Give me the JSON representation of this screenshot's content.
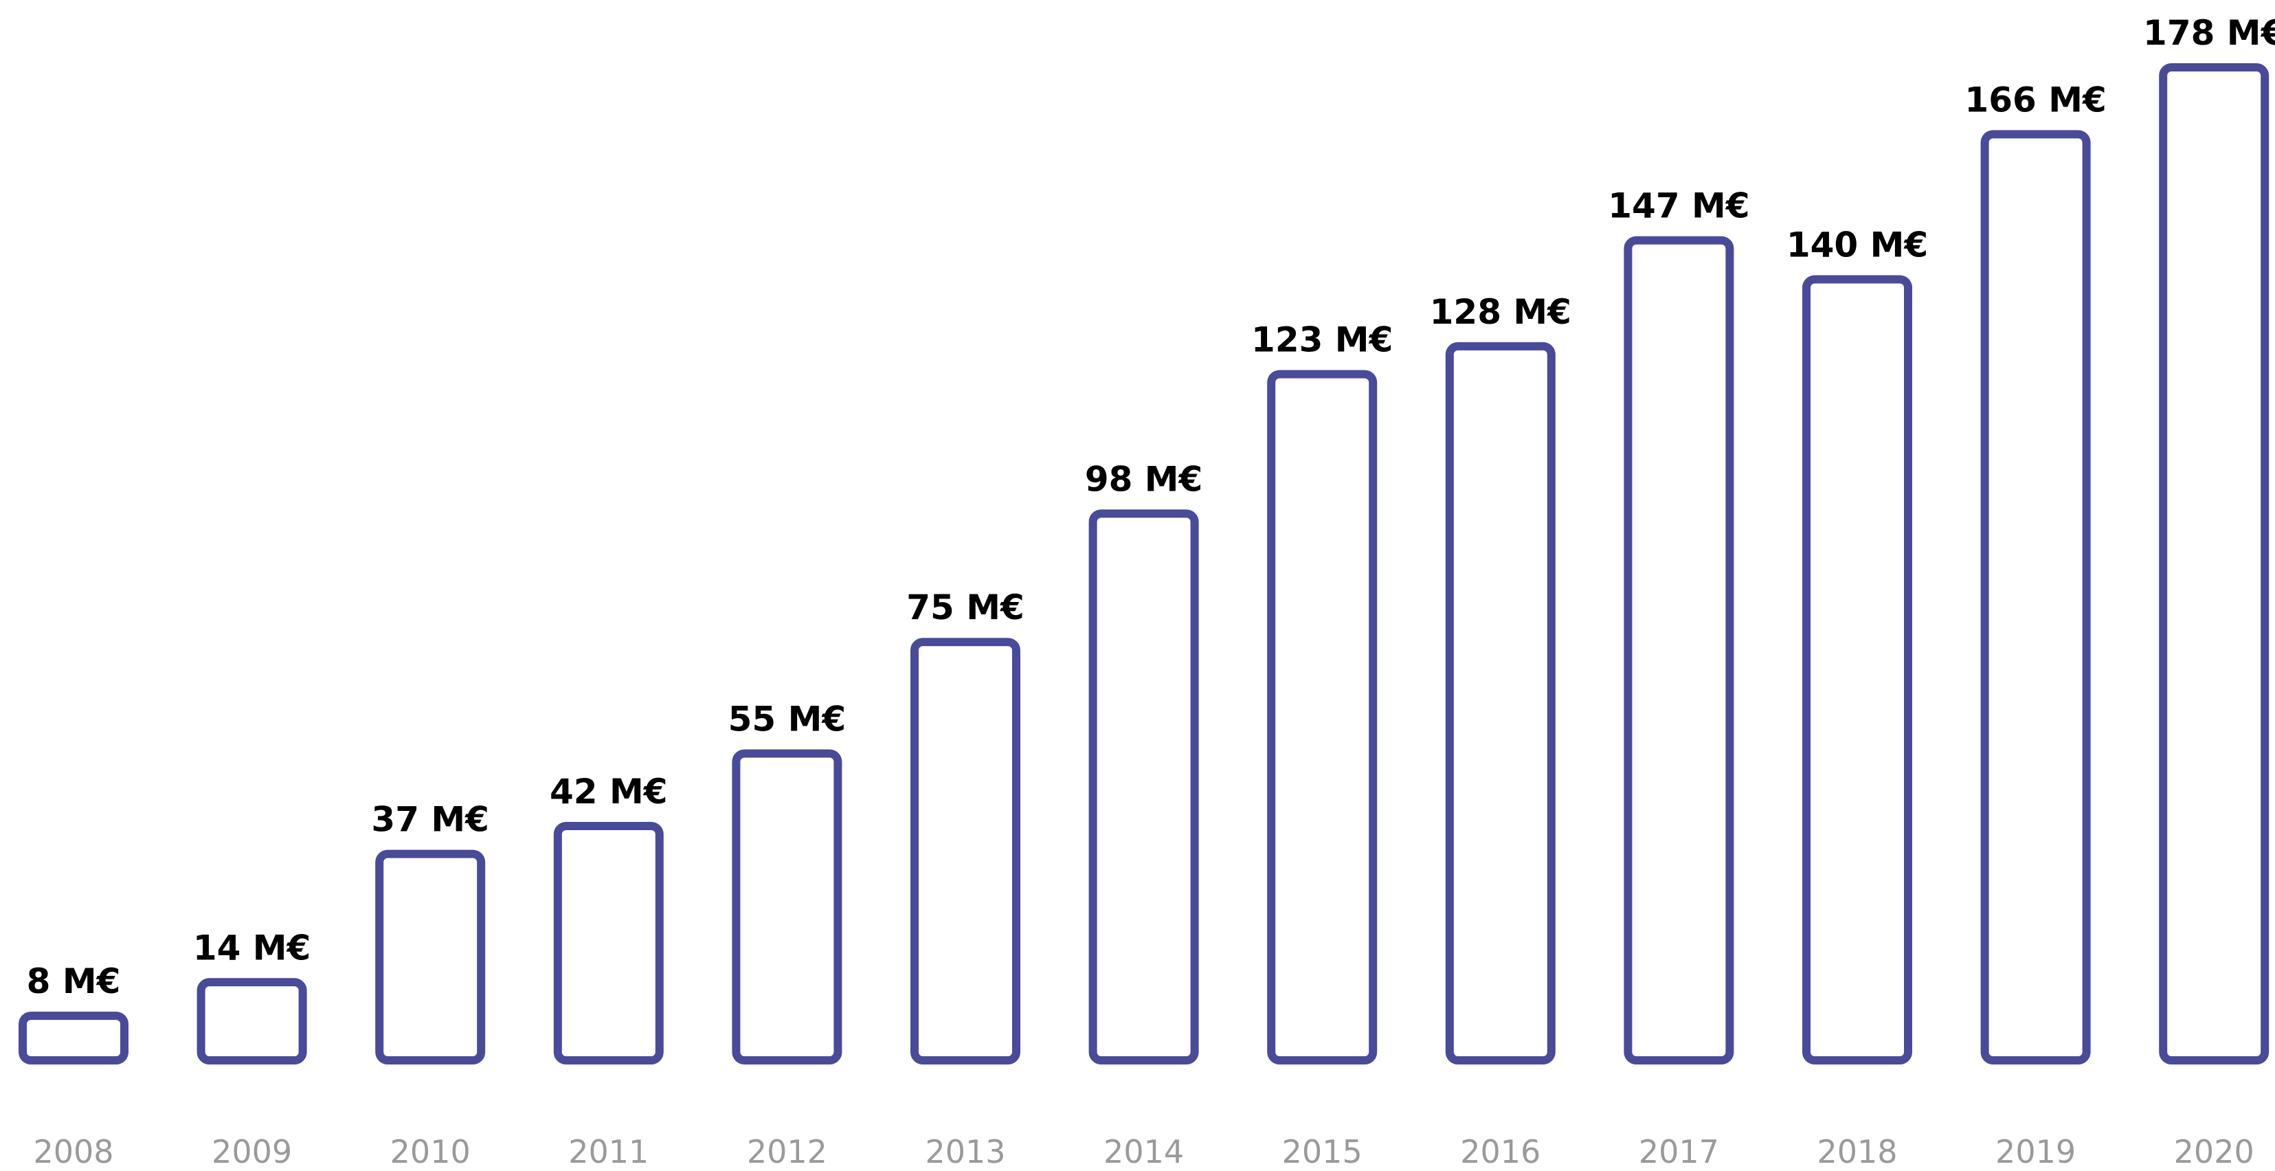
{
  "chart_data": {
    "type": "bar",
    "categories": [
      "2008",
      "2009",
      "2010",
      "2011",
      "2012",
      "2013",
      "2014",
      "2015",
      "2016",
      "2017",
      "2018",
      "2019",
      "2020"
    ],
    "values": [
      8,
      14,
      37,
      42,
      55,
      75,
      98,
      123,
      128,
      147,
      140,
      166,
      178
    ],
    "data_labels": [
      "8 M€",
      "14 M€",
      "37 M€",
      "42 M€",
      "55 M€",
      "75 M€",
      "98 M€",
      "123 M€",
      "128 M€",
      "147 M€",
      "140 M€",
      "166 M€",
      "178 M€"
    ],
    "title": "",
    "xlabel": "",
    "ylabel": "",
    "ylim": [
      0,
      178
    ],
    "grid": false,
    "legend": "none",
    "bar_style": "outline",
    "colors": {
      "bar_stroke": "#484a9a",
      "bar_fill": "#ffffff",
      "value_label": "#000000",
      "tick_label": "#9a9a9a"
    }
  }
}
